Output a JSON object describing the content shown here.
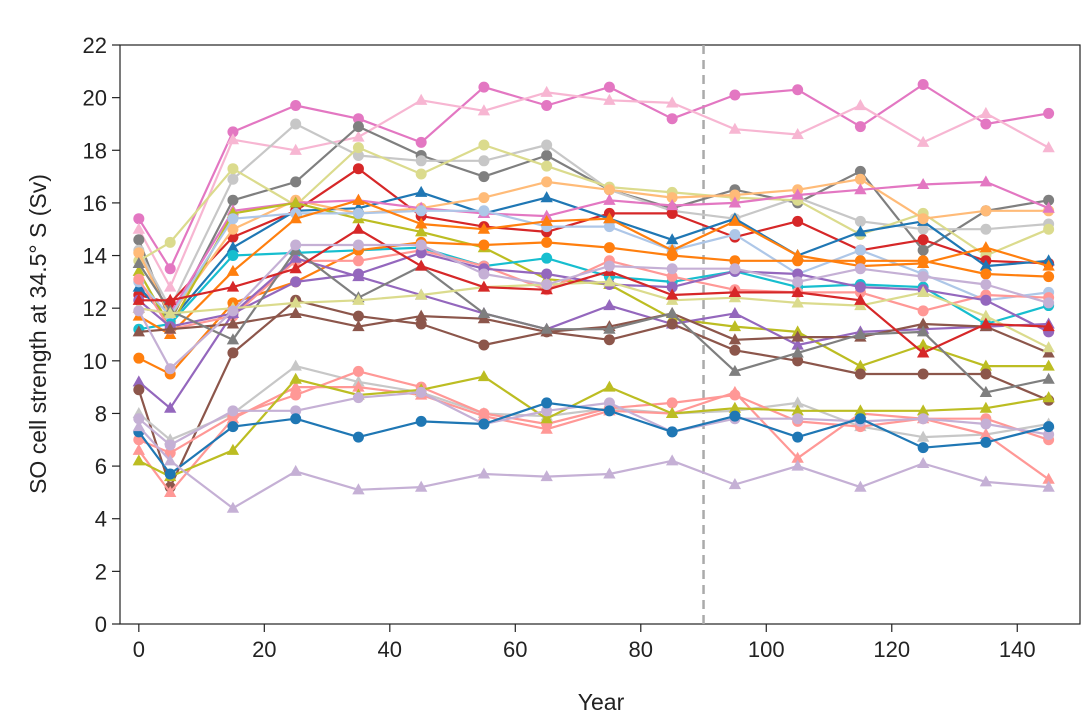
{
  "chart_data": {
    "type": "line",
    "xlabel": "Year",
    "ylabel": "SO cell strength at 34.5° S (Sv)",
    "xlim": [
      -3,
      150
    ],
    "ylim": [
      0,
      22
    ],
    "xticks": [
      0,
      20,
      40,
      60,
      80,
      100,
      120,
      140
    ],
    "yticks": [
      0,
      2,
      4,
      6,
      8,
      10,
      12,
      14,
      16,
      18,
      20,
      22
    ],
    "grid": false,
    "reference_line": {
      "x": 90,
      "style": "dashed",
      "color": "#aaaaaa"
    },
    "x": [
      0,
      5,
      15,
      25,
      35,
      45,
      55,
      65,
      75,
      85,
      95,
      105,
      115,
      125,
      135,
      145
    ],
    "series": [
      {
        "color": "#e377c2",
        "marker": "circle",
        "values": [
          15.4,
          13.5,
          18.7,
          19.7,
          19.2,
          18.3,
          20.4,
          19.7,
          20.4,
          19.2,
          20.1,
          20.3,
          18.9,
          20.5,
          19.0,
          19.4
        ]
      },
      {
        "color": "#f7b6d2",
        "marker": "triangle",
        "values": [
          15.0,
          12.8,
          18.4,
          18.0,
          18.5,
          19.9,
          19.5,
          20.2,
          19.9,
          19.8,
          18.8,
          18.6,
          19.7,
          18.3,
          19.4,
          18.1
        ]
      },
      {
        "color": "#7f7f7f",
        "marker": "circle",
        "values": [
          14.6,
          11.5,
          16.1,
          16.8,
          18.9,
          17.8,
          17.0,
          17.8,
          16.5,
          15.8,
          16.5,
          16.0,
          17.2,
          14.2,
          15.7,
          16.1
        ]
      },
      {
        "color": "#c7c7c7",
        "marker": "circle",
        "values": [
          14.2,
          12.0,
          16.9,
          19.0,
          17.8,
          17.6,
          17.6,
          18.2,
          16.5,
          15.7,
          15.4,
          16.2,
          15.3,
          15.0,
          15.0,
          15.2
        ]
      },
      {
        "color": "#dbdb8d",
        "marker": "circle",
        "values": [
          13.8,
          14.5,
          17.3,
          15.9,
          18.1,
          17.1,
          18.2,
          17.4,
          16.6,
          16.4,
          16.2,
          16.1,
          14.8,
          15.6,
          14.0,
          15.0
        ]
      },
      {
        "color": "#d62728",
        "marker": "circle",
        "values": [
          12.5,
          12.2,
          14.7,
          15.7,
          17.3,
          15.5,
          15.1,
          14.9,
          15.6,
          15.6,
          14.7,
          15.3,
          14.2,
          14.6,
          13.8,
          13.7
        ]
      },
      {
        "color": "#1f77b4",
        "marker": "triangle",
        "values": [
          12.8,
          11.5,
          14.3,
          15.7,
          15.8,
          16.4,
          15.6,
          16.2,
          15.4,
          14.6,
          15.4,
          14.0,
          14.9,
          15.3,
          13.6,
          13.8
        ]
      },
      {
        "color": "#ffbb78",
        "marker": "circle",
        "values": [
          14.1,
          11.7,
          15.0,
          16.1,
          15.6,
          15.8,
          16.2,
          16.8,
          16.5,
          16.2,
          16.3,
          16.5,
          16.9,
          15.4,
          15.7,
          15.7
        ]
      },
      {
        "color": "#e377c2",
        "marker": "triangle",
        "values": [
          12.0,
          11.8,
          15.7,
          16.0,
          16.1,
          15.8,
          15.6,
          15.5,
          16.1,
          15.9,
          16.0,
          16.3,
          16.5,
          16.7,
          16.8,
          15.8
        ]
      },
      {
        "color": "#bcbd22",
        "marker": "triangle",
        "values": [
          13.4,
          11.3,
          15.6,
          16.0,
          15.4,
          14.9,
          14.3,
          13.1,
          12.9,
          11.6,
          11.3,
          11.1,
          9.8,
          10.6,
          9.8,
          9.8
        ]
      },
      {
        "color": "#aec7e8",
        "marker": "circle",
        "values": [
          13.0,
          11.7,
          15.4,
          15.6,
          15.6,
          15.7,
          15.7,
          15.1,
          15.1,
          14.2,
          14.8,
          13.3,
          14.2,
          13.3,
          12.3,
          12.6
        ]
      },
      {
        "color": "#17becf",
        "marker": "circle",
        "values": [
          11.2,
          11.4,
          14.0,
          14.1,
          14.2,
          14.3,
          13.6,
          13.9,
          13.2,
          13.0,
          13.4,
          12.8,
          12.9,
          12.8,
          11.4,
          12.1
        ]
      },
      {
        "color": "#ff7f0e",
        "marker": "circle",
        "values": [
          10.1,
          9.5,
          12.2,
          13.0,
          14.2,
          14.5,
          14.4,
          14.5,
          14.3,
          14.0,
          13.8,
          13.8,
          13.8,
          13.8,
          13.3,
          13.2
        ]
      },
      {
        "color": "#ff7f0e",
        "marker": "triangle",
        "values": [
          11.7,
          11.0,
          13.4,
          15.4,
          16.1,
          15.2,
          15.0,
          15.3,
          15.4,
          14.2,
          15.3,
          14.0,
          13.6,
          13.7,
          14.3,
          13.6
        ]
      },
      {
        "color": "#ff9896",
        "marker": "circle",
        "values": [
          13.1,
          11.2,
          11.7,
          13.8,
          13.8,
          14.2,
          13.6,
          12.7,
          13.8,
          13.2,
          12.7,
          12.6,
          12.6,
          11.9,
          12.5,
          12.4
        ]
      },
      {
        "color": "#9467bd",
        "marker": "circle",
        "values": [
          12.3,
          11.3,
          11.8,
          13.0,
          13.3,
          14.1,
          13.5,
          13.3,
          12.9,
          12.8,
          13.4,
          13.3,
          12.8,
          12.7,
          12.3,
          11.1
        ]
      },
      {
        "color": "#9467bd",
        "marker": "triangle",
        "values": [
          9.2,
          8.2,
          11.8,
          13.9,
          13.2,
          12.5,
          11.8,
          11.2,
          12.1,
          11.4,
          11.8,
          10.6,
          11.1,
          11.2,
          11.3,
          11.4
        ]
      },
      {
        "color": "#8c564b",
        "marker": "circle",
        "values": [
          8.9,
          5.2,
          10.3,
          12.3,
          11.7,
          11.4,
          10.6,
          11.1,
          10.8,
          11.4,
          10.4,
          10.0,
          9.5,
          9.5,
          9.5,
          8.5
        ]
      },
      {
        "color": "#8c564b",
        "marker": "triangle",
        "values": [
          11.1,
          11.2,
          11.4,
          11.8,
          11.3,
          11.7,
          11.6,
          11.1,
          11.3,
          11.8,
          10.8,
          10.9,
          10.9,
          11.4,
          11.3,
          10.3
        ]
      },
      {
        "color": "#7f7f7f",
        "marker": "triangle",
        "values": [
          13.7,
          11.9,
          10.8,
          14.2,
          12.4,
          13.6,
          11.8,
          11.2,
          11.2,
          11.8,
          9.6,
          10.3,
          11.0,
          11.1,
          8.8,
          9.3
        ]
      },
      {
        "color": "#dbdb8d",
        "marker": "triangle",
        "values": [
          12.0,
          11.8,
          12.0,
          12.2,
          12.3,
          12.5,
          12.8,
          12.9,
          13.0,
          12.3,
          12.4,
          12.2,
          12.1,
          12.6,
          11.7,
          10.5
        ]
      },
      {
        "color": "#d62728",
        "marker": "triangle",
        "values": [
          12.3,
          12.3,
          12.8,
          13.5,
          15.0,
          13.6,
          12.8,
          12.7,
          13.4,
          12.5,
          12.6,
          12.6,
          12.3,
          10.3,
          11.4,
          11.3
        ]
      },
      {
        "color": "#c5b0d5",
        "marker": "circle",
        "values": [
          11.9,
          9.7,
          11.9,
          14.4,
          14.4,
          14.4,
          13.3,
          12.9,
          13.6,
          13.5,
          13.5,
          13.0,
          13.5,
          13.2,
          12.9,
          12.2
        ]
      },
      {
        "color": "#c7c7c7",
        "marker": "triangle",
        "values": [
          8.0,
          7.0,
          8.0,
          9.8,
          9.2,
          8.8,
          8.0,
          7.9,
          8.2,
          8.0,
          8.1,
          8.4,
          7.5,
          7.1,
          7.2,
          7.6
        ]
      },
      {
        "color": "#ff9896",
        "marker": "circle",
        "values": [
          7.0,
          6.5,
          7.9,
          8.7,
          9.6,
          9.0,
          8.0,
          7.6,
          8.2,
          8.4,
          8.7,
          7.7,
          7.5,
          7.8,
          7.8,
          7.0
        ]
      },
      {
        "color": "#ff9896",
        "marker": "triangle",
        "values": [
          6.6,
          5.0,
          7.8,
          9.0,
          9.0,
          8.7,
          7.9,
          7.4,
          8.1,
          8.0,
          8.8,
          6.3,
          8.0,
          7.8,
          7.2,
          5.5
        ]
      },
      {
        "color": "#bcbd22",
        "marker": "triangle",
        "values": [
          6.2,
          5.6,
          6.6,
          9.3,
          8.7,
          8.9,
          9.4,
          7.8,
          9.0,
          8.0,
          8.2,
          8.1,
          8.1,
          8.1,
          8.2,
          8.6
        ]
      },
      {
        "color": "#c5b0d5",
        "marker": "circle",
        "values": [
          7.8,
          6.8,
          8.1,
          8.1,
          8.6,
          8.8,
          7.6,
          8.1,
          8.4,
          7.3,
          7.8,
          7.8,
          7.7,
          7.8,
          7.6,
          7.2
        ]
      },
      {
        "color": "#1f77b4",
        "marker": "circle",
        "values": [
          7.3,
          5.7,
          7.5,
          7.8,
          7.1,
          7.7,
          7.6,
          8.4,
          8.1,
          7.3,
          7.9,
          7.1,
          7.8,
          6.7,
          6.9,
          7.5
        ]
      },
      {
        "color": "#c5b0d5",
        "marker": "triangle",
        "values": [
          7.5,
          6.2,
          4.4,
          5.8,
          5.1,
          5.2,
          5.7,
          5.6,
          5.7,
          6.2,
          5.3,
          6.0,
          5.2,
          6.1,
          5.4,
          5.2
        ]
      }
    ]
  }
}
